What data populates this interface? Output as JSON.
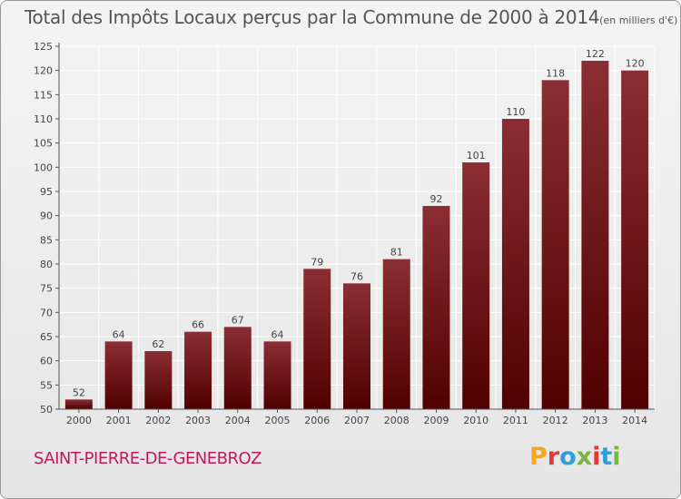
{
  "header": {
    "title": "Total des Impôts Locaux perçus par la Commune de 2000 à 2014",
    "unit": "(en milliers d'€)"
  },
  "footer": {
    "commune": "SAINT-PIERRE-DE-GENEBROZ",
    "logo_letters": [
      "P",
      "r",
      "o",
      "x",
      "i",
      "t",
      "i"
    ],
    "logo_colors": [
      "#f5a623",
      "#e53935",
      "#2e9fd8",
      "#7cb342",
      "#e53935",
      "#2e9fd8",
      "#7cb342"
    ]
  },
  "colors": {
    "bar_top": "#8a2e34",
    "bar_bottom": "#500000",
    "axis_text": "#444444",
    "grid": "#ffffff"
  },
  "chart_data": {
    "type": "bar",
    "title": "Total des Impôts Locaux perçus par la Commune de 2000 à 2014",
    "ylabel": "en milliers d'€",
    "xlabel": "",
    "categories": [
      "2000",
      "2001",
      "2002",
      "2003",
      "2004",
      "2005",
      "2006",
      "2007",
      "2008",
      "2009",
      "2010",
      "2011",
      "2012",
      "2013",
      "2014"
    ],
    "values": [
      52,
      64,
      62,
      66,
      67,
      64,
      79,
      76,
      81,
      92,
      101,
      110,
      118,
      122,
      120
    ],
    "ylim": [
      50,
      125
    ],
    "yticks": [
      50,
      55,
      60,
      65,
      70,
      75,
      80,
      85,
      90,
      95,
      100,
      105,
      110,
      115,
      120,
      125
    ],
    "grid": true
  }
}
